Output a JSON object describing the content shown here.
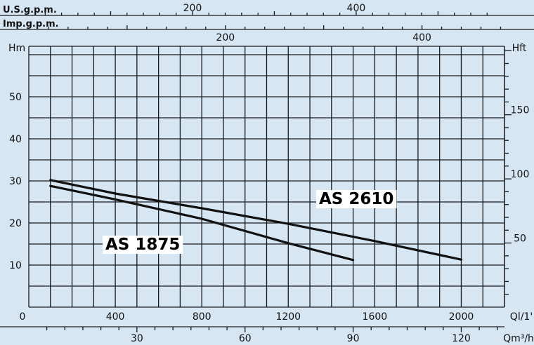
{
  "chart_data": {
    "type": "line",
    "title": "",
    "axes": {
      "usgpm": {
        "label": "U.S.g.p.m.",
        "ticks": [
          200,
          400
        ],
        "range": [
          0,
          560
        ]
      },
      "impgpm": {
        "label": "Imp.g.p.m.",
        "ticks": [
          200,
          400
        ],
        "range": [
          0,
          466
        ]
      },
      "head_m": {
        "label": "Hm",
        "ticks": [
          10,
          20,
          30,
          40,
          50
        ],
        "range": [
          0,
          62
        ]
      },
      "head_ft": {
        "label": "Hft",
        "ticks": [
          50,
          100,
          150
        ],
        "range": [
          0,
          203
        ]
      },
      "flow_lmin": {
        "label": "Ql/1'",
        "zero_label": "0",
        "ticks": [
          400,
          800,
          1200,
          1600,
          2000
        ],
        "range": [
          0,
          2200
        ]
      },
      "flow_m3h": {
        "label": "Qm³/h",
        "ticks": [
          30,
          60,
          90,
          120
        ],
        "range": [
          0,
          132
        ]
      }
    },
    "grid": true,
    "series": [
      {
        "name": "AS 2610",
        "x": [
          100,
          400,
          800,
          1200,
          1600,
          2000
        ],
        "y": [
          30.2,
          27,
          23.5,
          19.8,
          15.7,
          11.3
        ]
      },
      {
        "name": "AS 1875",
        "x": [
          100,
          400,
          800,
          1200,
          1500
        ],
        "y": [
          28.8,
          25.6,
          21,
          15.2,
          11.2
        ]
      }
    ]
  }
}
